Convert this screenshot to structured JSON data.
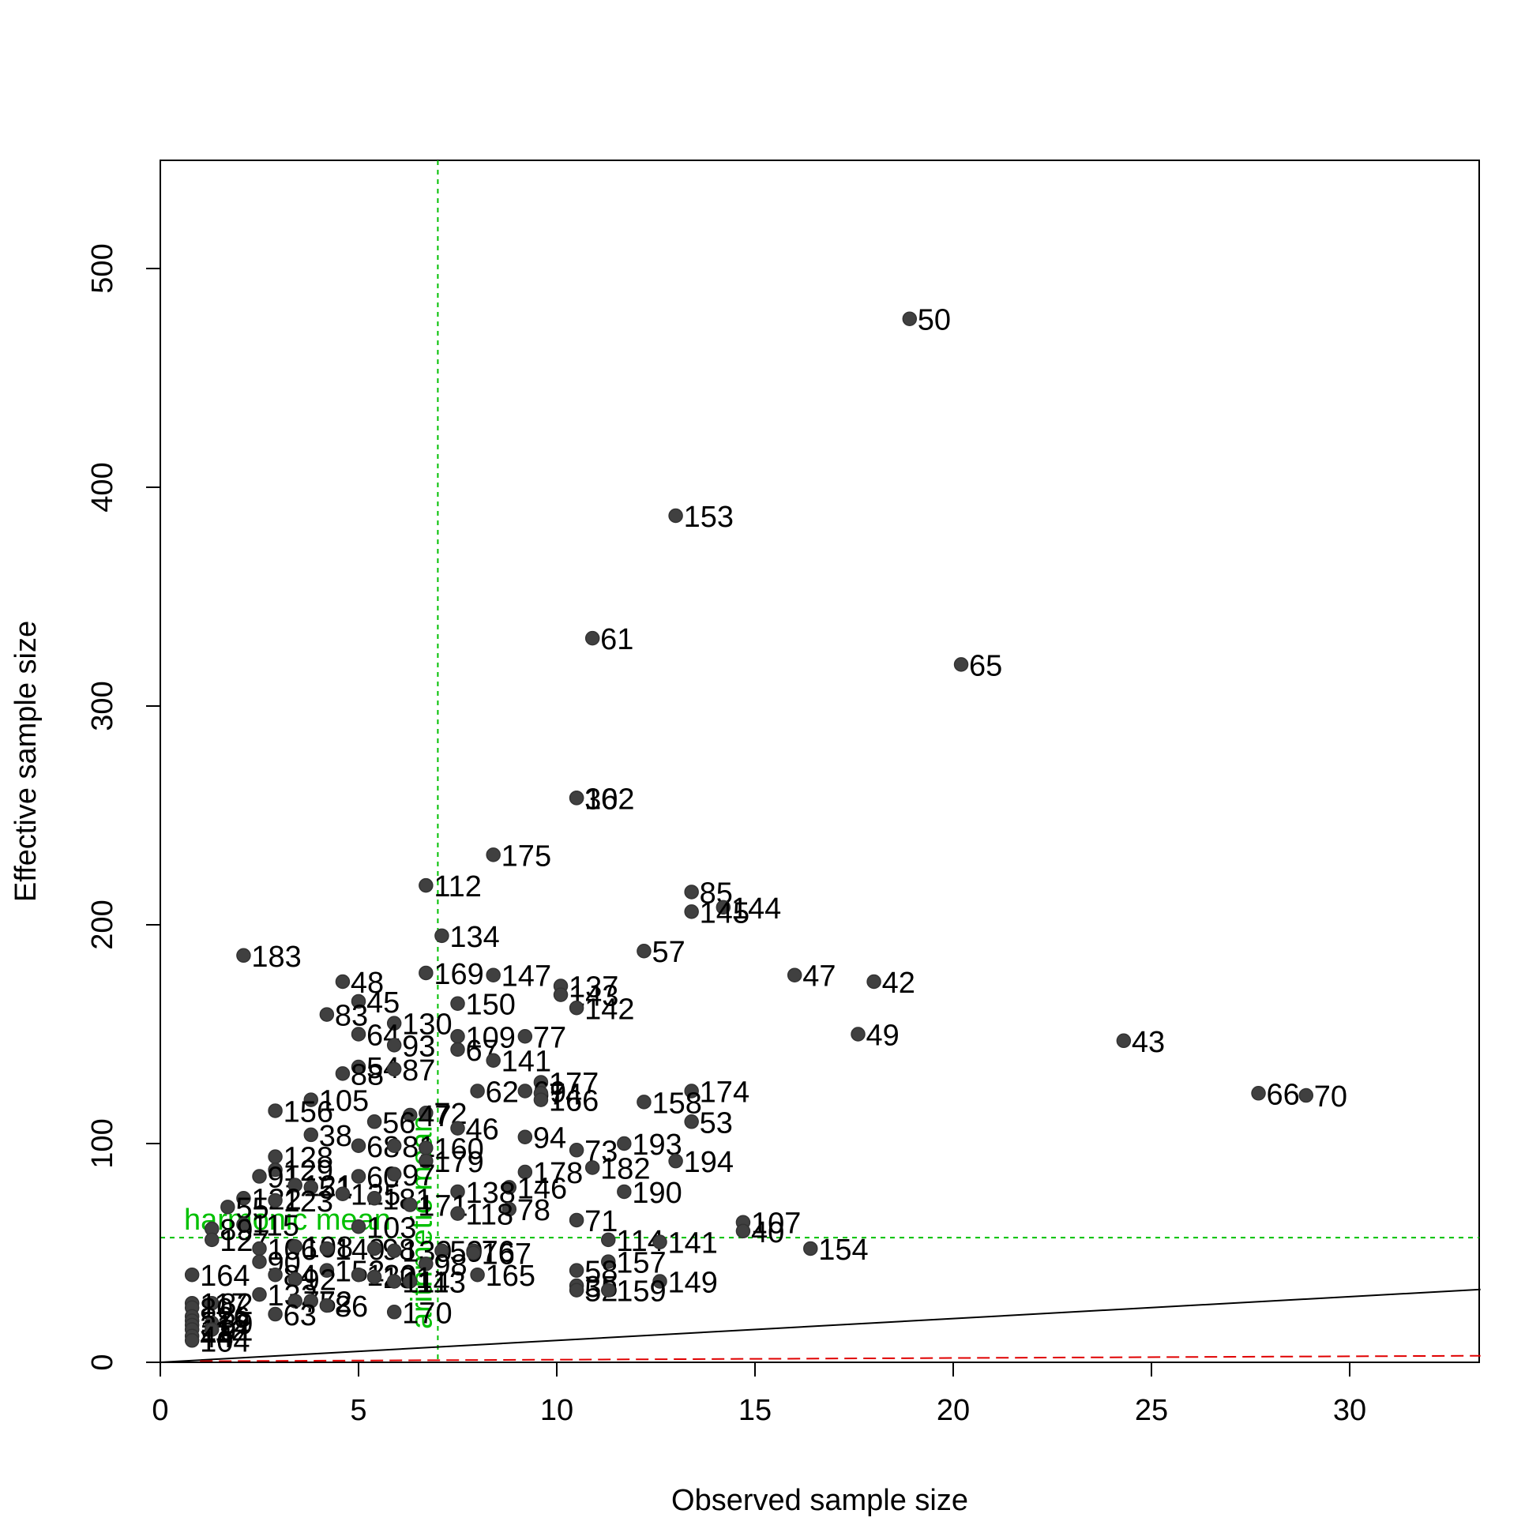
{
  "chart_data": {
    "type": "scatter",
    "xlabel": "Observed sample size",
    "ylabel": "Effective sample size",
    "xlim": [
      0,
      33.3
    ],
    "ylim": [
      0,
      545
    ],
    "x_ticks": [
      "0",
      "5",
      "10",
      "15",
      "20",
      "25",
      "30"
    ],
    "y_ticks": [
      "0",
      "100",
      "200",
      "300",
      "400",
      "500"
    ],
    "colors": {
      "points": "#404040",
      "reference": "#00c000",
      "lower_bound": "#e00000",
      "identity": "#000000"
    },
    "reference_lines": {
      "harmonic_mean": {
        "label": "harmonic mean",
        "value": 57
      },
      "arithmetic_mean": {
        "label": "arithmetic mean",
        "value": 7.0
      }
    },
    "lines": [
      {
        "name": "identity",
        "style": "solid",
        "x": [
          0,
          33.3
        ],
        "y": [
          0,
          33.3
        ]
      },
      {
        "name": "lower",
        "style": "dashed",
        "x": [
          1,
          33.3
        ],
        "y": [
          0.5,
          3
        ]
      }
    ],
    "points": [
      {
        "x": 18.9,
        "y": 477,
        "label": "50"
      },
      {
        "x": 13.0,
        "y": 387,
        "label": "153"
      },
      {
        "x": 10.9,
        "y": 331,
        "label": "61"
      },
      {
        "x": 20.2,
        "y": 319,
        "label": "65"
      },
      {
        "x": 10.5,
        "y": 258,
        "label": "30"
      },
      {
        "x": 10.5,
        "y": 258,
        "label": "162"
      },
      {
        "x": 8.4,
        "y": 232,
        "label": "175"
      },
      {
        "x": 6.7,
        "y": 218,
        "label": "112"
      },
      {
        "x": 13.4,
        "y": 215,
        "label": "85"
      },
      {
        "x": 14.2,
        "y": 208,
        "label": "144"
      },
      {
        "x": 13.4,
        "y": 206,
        "label": "145"
      },
      {
        "x": 7.1,
        "y": 195,
        "label": "134"
      },
      {
        "x": 12.2,
        "y": 188,
        "label": "57"
      },
      {
        "x": 2.1,
        "y": 186,
        "label": "183"
      },
      {
        "x": 6.7,
        "y": 178,
        "label": "169"
      },
      {
        "x": 8.4,
        "y": 177,
        "label": "147"
      },
      {
        "x": 16.0,
        "y": 177,
        "label": "47"
      },
      {
        "x": 18.0,
        "y": 174,
        "label": "42"
      },
      {
        "x": 4.6,
        "y": 174,
        "label": "48"
      },
      {
        "x": 10.1,
        "y": 172,
        "label": "137"
      },
      {
        "x": 10.1,
        "y": 168,
        "label": "143"
      },
      {
        "x": 5.0,
        "y": 165,
        "label": "45"
      },
      {
        "x": 7.5,
        "y": 164,
        "label": "150"
      },
      {
        "x": 10.5,
        "y": 162,
        "label": "142"
      },
      {
        "x": 4.2,
        "y": 159,
        "label": "83"
      },
      {
        "x": 5.9,
        "y": 155,
        "label": "130"
      },
      {
        "x": 17.6,
        "y": 150,
        "label": "49"
      },
      {
        "x": 5.0,
        "y": 150,
        "label": "64"
      },
      {
        "x": 7.5,
        "y": 149,
        "label": "109"
      },
      {
        "x": 9.2,
        "y": 149,
        "label": "77"
      },
      {
        "x": 24.3,
        "y": 147,
        "label": "43"
      },
      {
        "x": 5.9,
        "y": 145,
        "label": "93"
      },
      {
        "x": 7.5,
        "y": 143,
        "label": "67"
      },
      {
        "x": 8.4,
        "y": 138,
        "label": "141"
      },
      {
        "x": 5.0,
        "y": 135,
        "label": "54"
      },
      {
        "x": 5.9,
        "y": 134,
        "label": "87"
      },
      {
        "x": 4.6,
        "y": 132,
        "label": "88"
      },
      {
        "x": 9.6,
        "y": 128,
        "label": "177"
      },
      {
        "x": 8.0,
        "y": 124,
        "label": "62"
      },
      {
        "x": 9.2,
        "y": 124,
        "label": "69"
      },
      {
        "x": 9.6,
        "y": 123,
        "label": "74"
      },
      {
        "x": 13.4,
        "y": 124,
        "label": "174"
      },
      {
        "x": 27.7,
        "y": 123,
        "label": "66"
      },
      {
        "x": 28.9,
        "y": 122,
        "label": "70"
      },
      {
        "x": 9.6,
        "y": 120,
        "label": "166"
      },
      {
        "x": 3.8,
        "y": 120,
        "label": "105"
      },
      {
        "x": 12.2,
        "y": 119,
        "label": "158"
      },
      {
        "x": 2.9,
        "y": 115,
        "label": "156"
      },
      {
        "x": 6.7,
        "y": 114,
        "label": "72"
      },
      {
        "x": 6.3,
        "y": 113,
        "label": "47"
      },
      {
        "x": 13.4,
        "y": 110,
        "label": "53"
      },
      {
        "x": 5.4,
        "y": 110,
        "label": "56"
      },
      {
        "x": 7.5,
        "y": 107,
        "label": "46"
      },
      {
        "x": 3.8,
        "y": 104,
        "label": "38"
      },
      {
        "x": 9.2,
        "y": 103,
        "label": "94"
      },
      {
        "x": 11.7,
        "y": 100,
        "label": "193"
      },
      {
        "x": 5.0,
        "y": 99,
        "label": "68"
      },
      {
        "x": 5.9,
        "y": 99,
        "label": "81"
      },
      {
        "x": 6.7,
        "y": 98,
        "label": "160"
      },
      {
        "x": 10.5,
        "y": 97,
        "label": "73"
      },
      {
        "x": 2.9,
        "y": 94,
        "label": "128"
      },
      {
        "x": 13.0,
        "y": 92,
        "label": "194"
      },
      {
        "x": 6.7,
        "y": 92,
        "label": "179"
      },
      {
        "x": 10.9,
        "y": 89,
        "label": "182"
      },
      {
        "x": 2.9,
        "y": 88,
        "label": "129"
      },
      {
        "x": 9.2,
        "y": 87,
        "label": "178"
      },
      {
        "x": 2.5,
        "y": 85,
        "label": "91"
      },
      {
        "x": 5.0,
        "y": 85,
        "label": "60"
      },
      {
        "x": 5.9,
        "y": 86,
        "label": "97"
      },
      {
        "x": 3.4,
        "y": 81,
        "label": "121"
      },
      {
        "x": 3.8,
        "y": 80,
        "label": "51"
      },
      {
        "x": 8.8,
        "y": 80,
        "label": "146"
      },
      {
        "x": 11.7,
        "y": 78,
        "label": "190"
      },
      {
        "x": 7.5,
        "y": 78,
        "label": "138"
      },
      {
        "x": 4.6,
        "y": 77,
        "label": "125"
      },
      {
        "x": 5.4,
        "y": 75,
        "label": "181"
      },
      {
        "x": 2.1,
        "y": 75,
        "label": "122"
      },
      {
        "x": 2.9,
        "y": 74,
        "label": "123"
      },
      {
        "x": 6.3,
        "y": 72,
        "label": "171"
      },
      {
        "x": 8.8,
        "y": 70,
        "label": "78"
      },
      {
        "x": 1.7,
        "y": 71,
        "label": "55"
      },
      {
        "x": 7.5,
        "y": 68,
        "label": "118"
      },
      {
        "x": 10.5,
        "y": 65,
        "label": "71"
      },
      {
        "x": 14.7,
        "y": 64,
        "label": "107"
      },
      {
        "x": 14.7,
        "y": 60,
        "label": "40"
      },
      {
        "x": 2.1,
        "y": 63,
        "label": "115"
      },
      {
        "x": 5.0,
        "y": 62,
        "label": "103"
      },
      {
        "x": 1.3,
        "y": 61,
        "label": "89"
      },
      {
        "x": 11.3,
        "y": 56,
        "label": "114"
      },
      {
        "x": 12.6,
        "y": 55,
        "label": "141"
      },
      {
        "x": 1.3,
        "y": 56,
        "label": "127"
      },
      {
        "x": 16.4,
        "y": 52,
        "label": "154"
      },
      {
        "x": 2.5,
        "y": 52,
        "label": "106"
      },
      {
        "x": 3.4,
        "y": 53,
        "label": "108"
      },
      {
        "x": 4.2,
        "y": 52,
        "label": "140"
      },
      {
        "x": 5.4,
        "y": 52,
        "label": "98"
      },
      {
        "x": 5.9,
        "y": 51,
        "label": "139"
      },
      {
        "x": 7.1,
        "y": 51,
        "label": "59"
      },
      {
        "x": 7.9,
        "y": 51,
        "label": "76"
      },
      {
        "x": 7.9,
        "y": 50,
        "label": "167"
      },
      {
        "x": 11.3,
        "y": 46,
        "label": "157"
      },
      {
        "x": 6.7,
        "y": 45,
        "label": "98"
      },
      {
        "x": 2.5,
        "y": 46,
        "label": "90"
      },
      {
        "x": 0.8,
        "y": 40,
        "label": "164"
      },
      {
        "x": 8.0,
        "y": 40,
        "label": "165"
      },
      {
        "x": 10.5,
        "y": 42,
        "label": "58"
      },
      {
        "x": 12.6,
        "y": 37,
        "label": "149"
      },
      {
        "x": 4.2,
        "y": 42,
        "label": "152"
      },
      {
        "x": 5.0,
        "y": 40,
        "label": "120"
      },
      {
        "x": 5.4,
        "y": 39,
        "label": "131"
      },
      {
        "x": 2.9,
        "y": 40,
        "label": "84"
      },
      {
        "x": 3.4,
        "y": 38,
        "label": "92"
      },
      {
        "x": 6.3,
        "y": 37,
        "label": "113"
      },
      {
        "x": 5.9,
        "y": 37,
        "label": "114"
      },
      {
        "x": 10.5,
        "y": 35,
        "label": "35"
      },
      {
        "x": 10.5,
        "y": 33,
        "label": "52"
      },
      {
        "x": 11.3,
        "y": 33,
        "label": "159"
      },
      {
        "x": 2.5,
        "y": 31,
        "label": "132"
      },
      {
        "x": 3.4,
        "y": 28,
        "label": "75"
      },
      {
        "x": 3.8,
        "y": 28,
        "label": "72"
      },
      {
        "x": 4.2,
        "y": 26,
        "label": "86"
      },
      {
        "x": 1.3,
        "y": 27,
        "label": "82"
      },
      {
        "x": 0.8,
        "y": 27,
        "label": "117"
      },
      {
        "x": 0.8,
        "y": 25,
        "label": "80"
      },
      {
        "x": 5.9,
        "y": 23,
        "label": "170"
      },
      {
        "x": 2.9,
        "y": 22,
        "label": "63"
      },
      {
        "x": 0.8,
        "y": 21,
        "label": "126"
      },
      {
        "x": 0.8,
        "y": 19,
        "label": "172"
      },
      {
        "x": 1.3,
        "y": 18,
        "label": "39"
      },
      {
        "x": 0.8,
        "y": 17,
        "label": "31"
      },
      {
        "x": 0.8,
        "y": 15,
        "label": "112"
      },
      {
        "x": 1.3,
        "y": 15,
        "label": "91"
      },
      {
        "x": 0.8,
        "y": 12,
        "label": "44"
      },
      {
        "x": 0.8,
        "y": 10,
        "label": "104"
      }
    ]
  }
}
